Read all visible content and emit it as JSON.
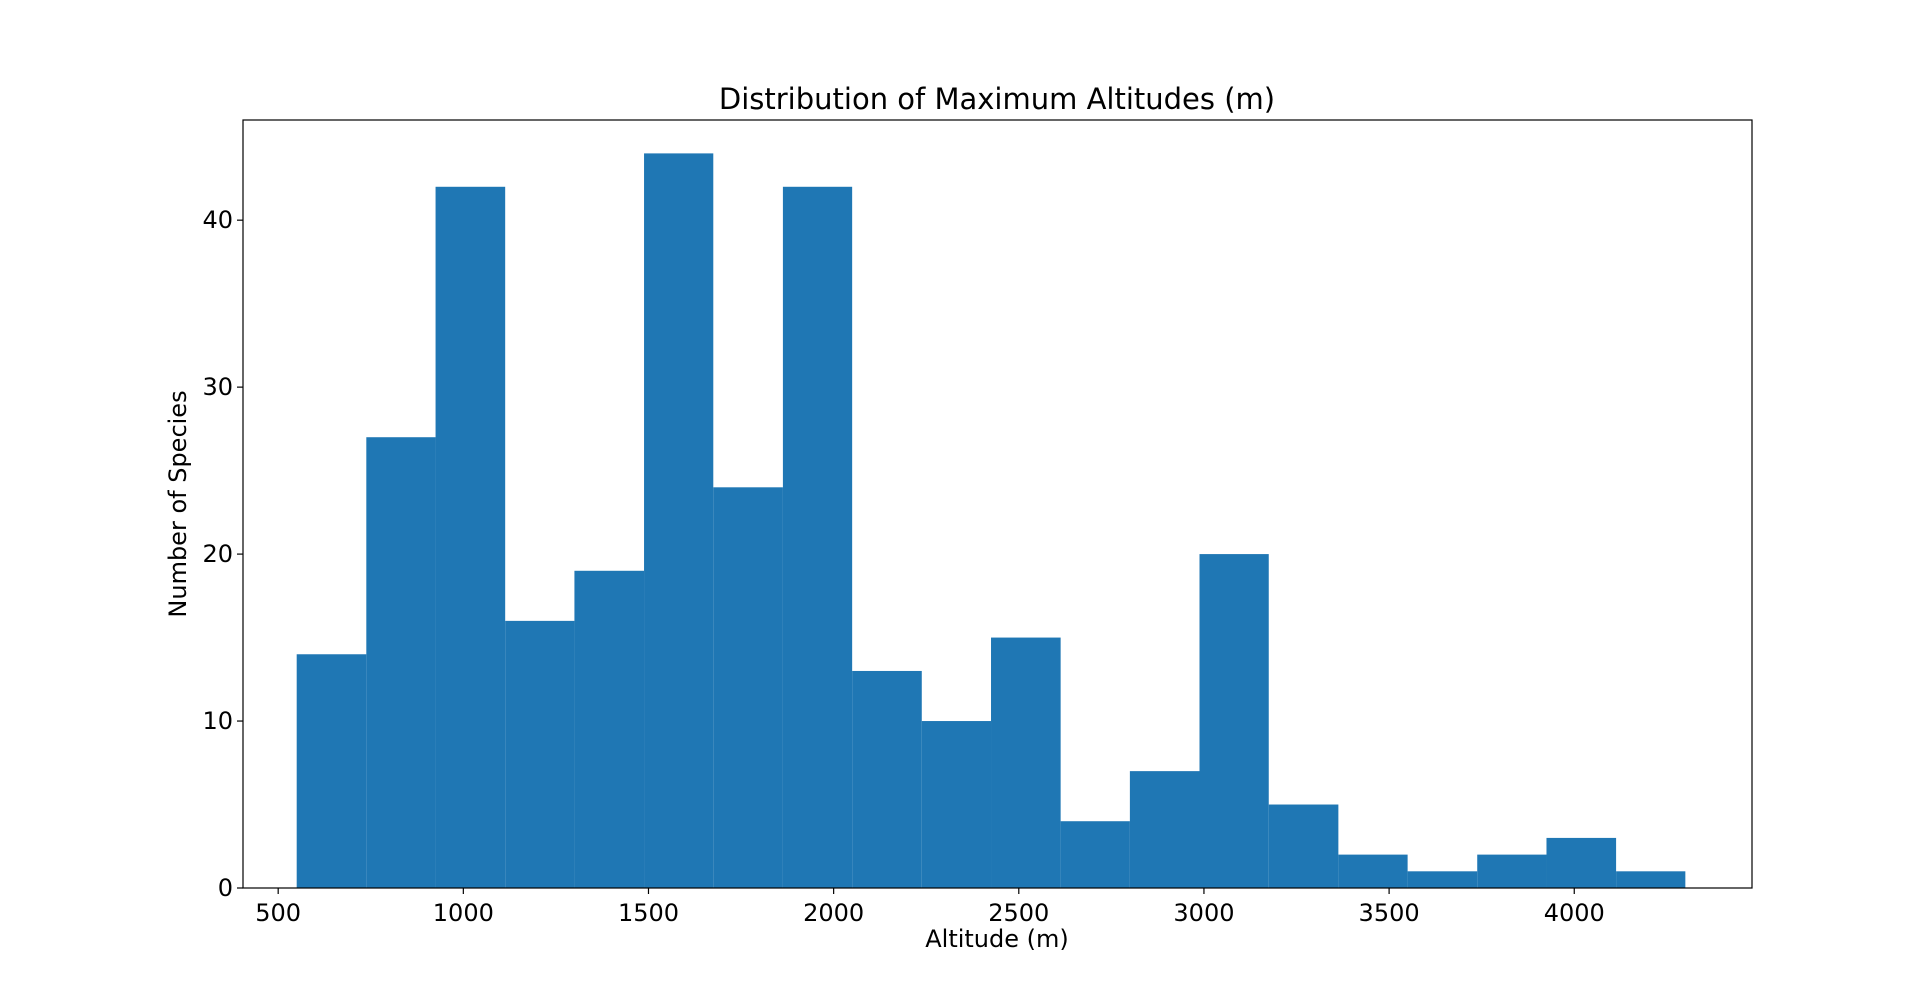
{
  "chart_data": {
    "type": "bar",
    "title": "Distribution of Maximum Altitudes (m)",
    "xlabel": "Altitude (m)",
    "ylabel": "Number of Species",
    "xlim": [
      405,
      4480
    ],
    "ylim": [
      0,
      46
    ],
    "xticks": [
      500,
      1000,
      1500,
      2000,
      2500,
      3000,
      3500,
      4000
    ],
    "yticks": [
      0,
      10,
      20,
      30,
      40
    ],
    "bin_edges": [
      550,
      738,
      925,
      1113,
      1300,
      1488,
      1675,
      1863,
      2050,
      2238,
      2425,
      2613,
      2800,
      2988,
      3175,
      3363,
      3550,
      3738,
      3925,
      4113,
      4300
    ],
    "values": [
      14,
      27,
      42,
      16,
      19,
      44,
      24,
      42,
      13,
      10,
      15,
      4,
      7,
      20,
      5,
      2,
      1,
      2,
      3,
      1
    ],
    "bar_color": "#1f77b4",
    "grid": false,
    "legend": "none"
  }
}
